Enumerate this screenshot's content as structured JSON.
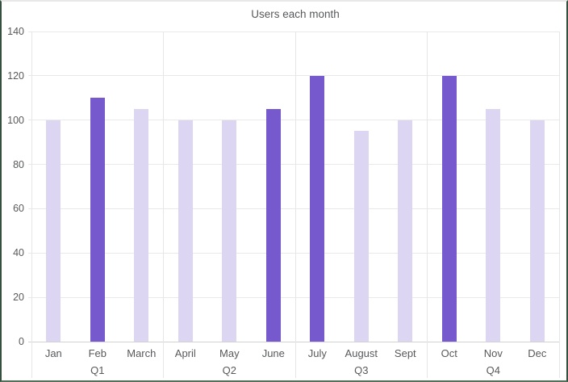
{
  "window": {
    "border_color": "#35503f",
    "background": "#ffffff"
  },
  "chart_data": {
    "type": "bar",
    "title": "Users each month",
    "categories": [
      "Jan",
      "Feb",
      "March",
      "April",
      "May",
      "June",
      "July",
      "August",
      "Sept",
      "Oct",
      "Nov",
      "Dec"
    ],
    "values": [
      100,
      110,
      105,
      100,
      100,
      105,
      120,
      95,
      100,
      120,
      105,
      100
    ],
    "highlighted_categories": [
      "Feb",
      "June",
      "July",
      "Oct"
    ],
    "group_labels": [
      "Q1",
      "Q2",
      "Q3",
      "Q4"
    ],
    "categories_per_group": 3,
    "xlabel": "",
    "ylabel": "",
    "ylim": [
      0,
      140
    ],
    "ytick_interval": 20,
    "yticks": [
      0,
      20,
      40,
      60,
      80,
      100,
      120,
      140
    ],
    "grid": true,
    "legend_position": "none",
    "colors": {
      "bar": "#ddd6f2",
      "bar_highlight": "#7659cc",
      "gridline": "#e9e9e9",
      "axis_line": "#d2d2d2",
      "divider_line": "#e6e6e6",
      "label_text": "#58595b",
      "title_text": "#58595b"
    }
  }
}
